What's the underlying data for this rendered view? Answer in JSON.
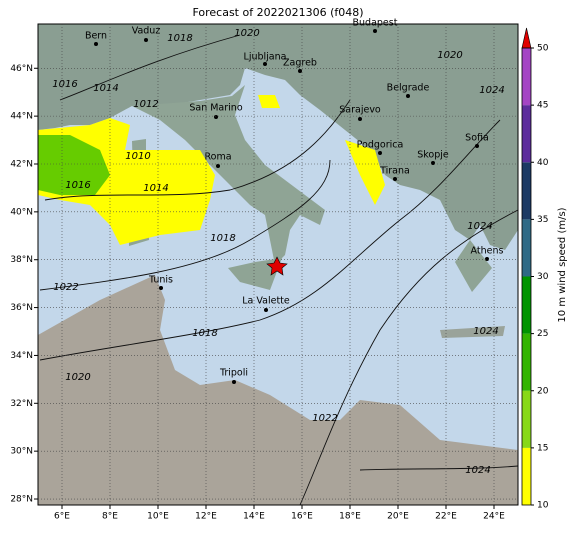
{
  "title": "Forecast of 2022021306 (f048)",
  "map": {
    "lonlim": [
      5,
      25
    ],
    "latlim": [
      27.75,
      47.85
    ],
    "lon_ticks": [
      {
        "value": 6,
        "label": "6°E"
      },
      {
        "value": 8,
        "label": "8°E"
      },
      {
        "value": 10,
        "label": "10°E"
      },
      {
        "value": 12,
        "label": "12°E"
      },
      {
        "value": 14,
        "label": "14°E"
      },
      {
        "value": 16,
        "label": "16°E"
      },
      {
        "value": 18,
        "label": "18°E"
      },
      {
        "value": 20,
        "label": "20°E"
      },
      {
        "value": 22,
        "label": "22°E"
      },
      {
        "value": 24,
        "label": "24°E"
      }
    ],
    "lat_ticks": [
      {
        "value": 28,
        "label": "28°N"
      },
      {
        "value": 30,
        "label": "30°N"
      },
      {
        "value": 32,
        "label": "32°N"
      },
      {
        "value": 34,
        "label": "34°N"
      },
      {
        "value": 36,
        "label": "36°N"
      },
      {
        "value": 38,
        "label": "38°N"
      },
      {
        "value": 40,
        "label": "40°N"
      },
      {
        "value": 42,
        "label": "42°N"
      },
      {
        "value": 44,
        "label": "44°N"
      },
      {
        "value": 46,
        "label": "46°N"
      }
    ],
    "grid": true,
    "cities": [
      "Bern",
      "Vaduz",
      "Ljubljana",
      "Zagreb",
      "Budapest",
      "Belgrade",
      "Sarajevo",
      "San Marino",
      "Roma",
      "Podgorica",
      "Skopje",
      "Sofia",
      "Tirana",
      "Athens",
      "Tunis",
      "La Valette",
      "Tripoli"
    ],
    "isobar_labels": [
      1020,
      1018,
      1016,
      1014,
      1012,
      1010,
      1016,
      1014,
      1018,
      1022,
      1018,
      1020,
      1022,
      1024,
      1024,
      1020,
      1024,
      1024
    ]
  },
  "colorbar": {
    "label": "10 m wind speed (m/s)",
    "lim": [
      10,
      50
    ],
    "ticks": [
      10,
      15,
      20,
      25,
      30,
      35,
      40,
      45,
      50
    ],
    "colors": [
      "#ffff00",
      "#88d818",
      "#33b400",
      "#009400",
      "#2e6a86",
      "#1c3a64",
      "#5c2c9c",
      "#a444c4"
    ],
    "extend_color": "#e00000"
  }
}
